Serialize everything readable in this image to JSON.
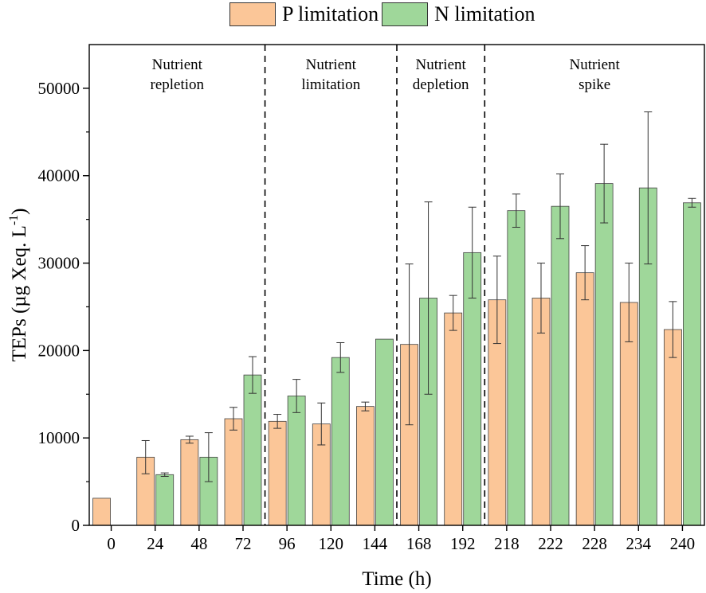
{
  "chart_data": {
    "type": "bar",
    "title": "",
    "xlabel": "Time (h)",
    "ylabel": "TEPs (µg Xeq. L",
    "ylabel_sup": "-1",
    "ylabel_close": ")",
    "ylim": [
      0,
      55000
    ],
    "yticks": [
      0,
      10000,
      20000,
      30000,
      40000,
      50000
    ],
    "categories": [
      "0",
      "24",
      "48",
      "72",
      "96",
      "120",
      "144",
      "168",
      "192",
      "218",
      "222",
      "228",
      "234",
      "240"
    ],
    "series": [
      {
        "name": "P limitation",
        "color": "#FBC698",
        "values": [
          3100,
          7800,
          9800,
          12200,
          11900,
          11600,
          13600,
          20700,
          24300,
          25800,
          26000,
          28900,
          25500,
          22400
        ],
        "errors": [
          null,
          1900,
          400,
          1300,
          800,
          2400,
          500,
          9200,
          2000,
          5000,
          4000,
          3100,
          4500,
          3200
        ]
      },
      {
        "name": "N limitation",
        "color": "#9FD79A",
        "values": [
          null,
          5800,
          7800,
          17200,
          14800,
          19200,
          21300,
          26000,
          31200,
          36000,
          36500,
          39100,
          38600,
          36900
        ],
        "errors": [
          null,
          200,
          2800,
          2100,
          1900,
          1700,
          0,
          11000,
          5200,
          1900,
          3700,
          4500,
          8700,
          500
        ]
      }
    ],
    "phases": [
      {
        "line1": "Nutrient",
        "line2": "repletion",
        "start_index": 0,
        "end_index": 3
      },
      {
        "line1": "Nutrient",
        "line2": "limitation",
        "start_index": 4,
        "end_index": 6
      },
      {
        "line1": "Nutrient",
        "line2": "depletion",
        "start_index": 7,
        "end_index": 8
      },
      {
        "line1": "Nutrient",
        "line2": "spike",
        "start_index": 9,
        "end_index": 13
      }
    ],
    "legend_position": "top-center"
  },
  "colors": {
    "p_limitation": "#FBC698",
    "n_limitation": "#9FD79A"
  }
}
